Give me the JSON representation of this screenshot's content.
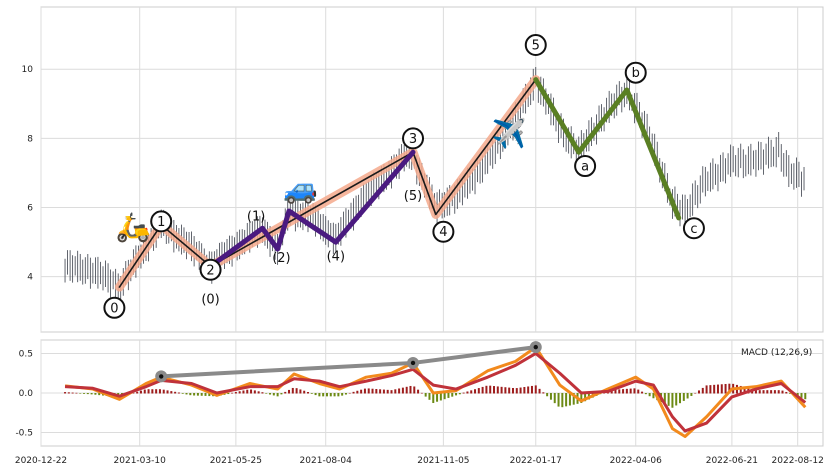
{
  "chart_data": [
    {
      "type": "candlestick",
      "panel": "price",
      "x_axis": {
        "type": "date",
        "range": [
          "2020-12-22",
          "2022-09-01"
        ],
        "ticks": [
          "2020-12-22",
          "2021-03-10",
          "2021-05-25",
          "2021-08-04",
          "2021-11-05",
          "2022-01-17",
          "2022-04-06",
          "2022-06-21",
          "2022-08-12"
        ]
      },
      "y_axis": {
        "range": [
          2.4,
          11.8
        ],
        "ticks": [
          4,
          6,
          8,
          10
        ]
      },
      "grid": true,
      "price_path": [
        {
          "date": "2021-01-10",
          "price": 4.3
        },
        {
          "date": "2021-01-30",
          "price": 4.2
        },
        {
          "date": "2021-02-15",
          "price": 3.9
        },
        {
          "date": "2021-02-22",
          "price": 3.7
        },
        {
          "date": "2021-03-10",
          "price": 4.6
        },
        {
          "date": "2021-03-27",
          "price": 5.5
        },
        {
          "date": "2021-04-15",
          "price": 5.0
        },
        {
          "date": "2021-05-05",
          "price": 4.3
        },
        {
          "date": "2021-05-25",
          "price": 4.9
        },
        {
          "date": "2021-06-15",
          "price": 5.4
        },
        {
          "date": "2021-06-27",
          "price": 4.8
        },
        {
          "date": "2021-07-06",
          "price": 5.9
        },
        {
          "date": "2021-07-25",
          "price": 5.7
        },
        {
          "date": "2021-08-12",
          "price": 5.1
        },
        {
          "date": "2021-09-01",
          "price": 6.2
        },
        {
          "date": "2021-09-20",
          "price": 6.9
        },
        {
          "date": "2021-10-10",
          "price": 7.6
        },
        {
          "date": "2021-10-30",
          "price": 6.0
        },
        {
          "date": "2021-11-18",
          "price": 6.4
        },
        {
          "date": "2021-12-15",
          "price": 7.6
        },
        {
          "date": "2022-01-05",
          "price": 8.8
        },
        {
          "date": "2022-01-17",
          "price": 9.7
        },
        {
          "date": "2022-02-05",
          "price": 8.3
        },
        {
          "date": "2022-02-20",
          "price": 7.6
        },
        {
          "date": "2022-03-10",
          "price": 8.6
        },
        {
          "date": "2022-03-30",
          "price": 9.4
        },
        {
          "date": "2022-04-20",
          "price": 7.8
        },
        {
          "date": "2022-05-05",
          "price": 6.1
        },
        {
          "date": "2022-05-15",
          "price": 5.9
        },
        {
          "date": "2022-06-01",
          "price": 6.8
        },
        {
          "date": "2022-06-21",
          "price": 7.3
        },
        {
          "date": "2022-07-15",
          "price": 7.4
        },
        {
          "date": "2022-07-28",
          "price": 7.7
        },
        {
          "date": "2022-08-05",
          "price": 7.0
        },
        {
          "date": "2022-08-18",
          "price": 6.8
        }
      ],
      "wave_lines": [
        {
          "name": "impulse",
          "color": "#1a1a1a",
          "halo": "#f4a98c",
          "points": [
            [
              "2021-02-22",
              3.7
            ],
            [
              "2021-03-27",
              5.5
            ],
            [
              "2021-05-05",
              4.3
            ],
            [
              "2021-10-12",
              7.6
            ],
            [
              "2021-10-30",
              5.8
            ],
            [
              "2022-01-17",
              9.7
            ]
          ]
        },
        {
          "name": "sub-waves",
          "color": "#4a1a80",
          "points": [
            [
              "2021-05-05",
              4.3
            ],
            [
              "2021-06-15",
              5.4
            ],
            [
              "2021-06-27",
              4.8
            ],
            [
              "2021-07-06",
              5.9
            ],
            [
              "2021-08-12",
              5.0
            ],
            [
              "2021-10-12",
              7.6
            ]
          ]
        },
        {
          "name": "correction",
          "color": "#5a7f23",
          "points": [
            [
              "2022-01-17",
              9.7
            ],
            [
              "2022-02-20",
              7.6
            ],
            [
              "2022-03-30",
              9.4
            ],
            [
              "2022-05-10",
              5.7
            ]
          ]
        }
      ],
      "wave_labels": [
        {
          "text": "0",
          "date": "2021-02-18",
          "price": 3.1,
          "circled": true
        },
        {
          "text": "1",
          "date": "2021-03-27",
          "price": 5.6,
          "circled": true
        },
        {
          "text": "2",
          "date": "2021-05-05",
          "price": 4.2,
          "circled": true
        },
        {
          "text": "(0)",
          "date": "2021-05-05",
          "price": 3.35,
          "circled": false
        },
        {
          "text": "(1)",
          "date": "2021-06-10",
          "price": 5.75,
          "circled": false
        },
        {
          "text": "(2)",
          "date": "2021-06-30",
          "price": 4.55,
          "circled": false
        },
        {
          "text": "(4)",
          "date": "2021-08-12",
          "price": 4.6,
          "circled": false
        },
        {
          "text": "(5)",
          "date": "2021-10-12",
          "price": 6.35,
          "circled": false
        },
        {
          "text": "3",
          "date": "2021-10-12",
          "price": 8.0,
          "circled": true
        },
        {
          "text": "4",
          "date": "2021-11-05",
          "price": 5.3,
          "circled": true
        },
        {
          "text": "5",
          "date": "2022-01-17",
          "price": 10.7,
          "circled": true
        },
        {
          "text": "a",
          "date": "2022-02-25",
          "price": 7.2,
          "circled": true
        },
        {
          "text": "b",
          "date": "2022-04-06",
          "price": 9.9,
          "circled": true
        },
        {
          "text": "c",
          "date": "2022-05-22",
          "price": 5.4,
          "circled": true
        }
      ],
      "icons": [
        {
          "name": "scooter-icon",
          "glyph": "🛵",
          "date": "2021-03-05",
          "price": 5.4
        },
        {
          "name": "car-icon",
          "glyph": "🚙",
          "date": "2021-07-15",
          "price": 6.5
        },
        {
          "name": "airplane-icon",
          "glyph": "✈️",
          "date": "2021-12-27",
          "price": 8.1
        }
      ]
    },
    {
      "type": "line",
      "panel": "macd",
      "legend": "MACD (12,26,9)",
      "y_axis": {
        "range": [
          -0.67,
          0.67
        ],
        "ticks": [
          0.5,
          0.0,
          -0.5
        ]
      },
      "grid": true,
      "series": [
        {
          "role": "macd",
          "color": "#f28a1d",
          "points": [
            [
              "2021-01-10",
              0.09
            ],
            [
              "2021-02-01",
              0.05
            ],
            [
              "2021-02-22",
              -0.08
            ],
            [
              "2021-03-15",
              0.12
            ],
            [
              "2021-03-27",
              0.2
            ],
            [
              "2021-04-20",
              0.1
            ],
            [
              "2021-05-10",
              -0.03
            ],
            [
              "2021-06-05",
              0.12
            ],
            [
              "2021-06-27",
              0.05
            ],
            [
              "2021-07-10",
              0.24
            ],
            [
              "2021-07-30",
              0.12
            ],
            [
              "2021-08-15",
              0.05
            ],
            [
              "2021-09-05",
              0.2
            ],
            [
              "2021-09-25",
              0.25
            ],
            [
              "2021-10-12",
              0.38
            ],
            [
              "2021-10-28",
              0.0
            ],
            [
              "2021-11-15",
              0.03
            ],
            [
              "2021-12-10",
              0.28
            ],
            [
              "2022-01-01",
              0.4
            ],
            [
              "2022-01-17",
              0.58
            ],
            [
              "2022-02-05",
              0.1
            ],
            [
              "2022-02-22",
              -0.1
            ],
            [
              "2022-03-15",
              0.05
            ],
            [
              "2022-04-06",
              0.2
            ],
            [
              "2022-04-20",
              0.05
            ],
            [
              "2022-05-05",
              -0.45
            ],
            [
              "2022-05-15",
              -0.55
            ],
            [
              "2022-06-01",
              -0.3
            ],
            [
              "2022-06-21",
              0.05
            ],
            [
              "2022-07-10",
              0.08
            ],
            [
              "2022-07-30",
              0.15
            ],
            [
              "2022-08-18",
              -0.18
            ]
          ]
        },
        {
          "role": "signal",
          "color": "#c0323a",
          "points": [
            [
              "2021-01-10",
              0.08
            ],
            [
              "2021-02-01",
              0.06
            ],
            [
              "2021-02-22",
              -0.04
            ],
            [
              "2021-03-15",
              0.08
            ],
            [
              "2021-03-27",
              0.16
            ],
            [
              "2021-04-20",
              0.12
            ],
            [
              "2021-05-10",
              0.0
            ],
            [
              "2021-06-05",
              0.08
            ],
            [
              "2021-06-27",
              0.08
            ],
            [
              "2021-07-10",
              0.18
            ],
            [
              "2021-07-30",
              0.15
            ],
            [
              "2021-08-15",
              0.08
            ],
            [
              "2021-09-05",
              0.15
            ],
            [
              "2021-09-25",
              0.22
            ],
            [
              "2021-10-12",
              0.3
            ],
            [
              "2021-10-28",
              0.1
            ],
            [
              "2021-11-15",
              0.05
            ],
            [
              "2021-12-10",
              0.2
            ],
            [
              "2022-01-01",
              0.35
            ],
            [
              "2022-01-17",
              0.5
            ],
            [
              "2022-02-05",
              0.25
            ],
            [
              "2022-02-22",
              0.0
            ],
            [
              "2022-03-15",
              0.02
            ],
            [
              "2022-04-06",
              0.15
            ],
            [
              "2022-04-20",
              0.1
            ],
            [
              "2022-05-05",
              -0.3
            ],
            [
              "2022-05-15",
              -0.48
            ],
            [
              "2022-06-01",
              -0.38
            ],
            [
              "2022-06-21",
              -0.05
            ],
            [
              "2022-07-10",
              0.05
            ],
            [
              "2022-07-30",
              0.12
            ],
            [
              "2022-08-18",
              -0.12
            ]
          ]
        }
      ],
      "divergence_line": {
        "color": "#8a8a8a",
        "points": [
          [
            "2021-03-27",
            0.21
          ],
          [
            "2021-10-12",
            0.38
          ],
          [
            "2022-01-17",
            0.58
          ]
        ]
      }
    }
  ]
}
